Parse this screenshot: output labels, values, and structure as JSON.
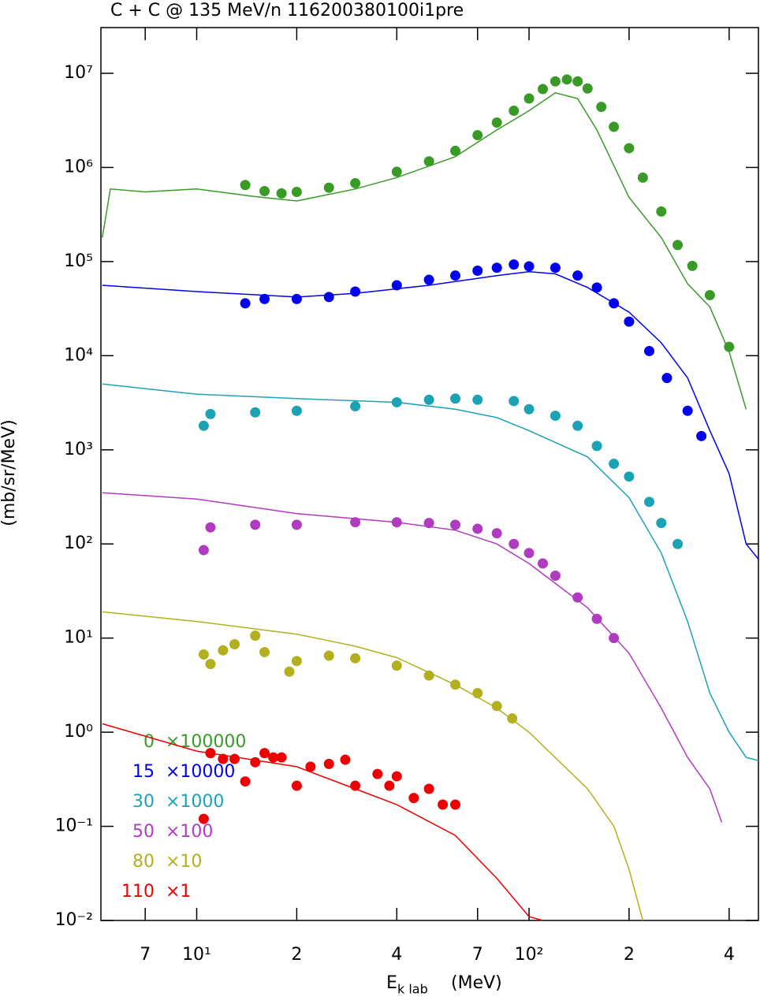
{
  "chart_data": {
    "type": "line-scatter",
    "title": "C + C @ 135 MeV/n 116200380100i1pre",
    "y_label": "(mb/sr/MeV)",
    "x_label": {
      "main": "E",
      "sub": "k lab",
      "unit": "(MeV)"
    },
    "log_x": true,
    "log_y": true,
    "xlim": [
      5.15,
      490
    ],
    "ylim": [
      0.01,
      30600000
    ],
    "xticks": [
      {
        "value": 7,
        "label": "7"
      },
      {
        "value": 10,
        "label": "10¹"
      },
      {
        "value": 20,
        "label": "2"
      },
      {
        "value": 40,
        "label": "4"
      },
      {
        "value": 70,
        "label": "7"
      },
      {
        "value": 100,
        "label": "10²"
      },
      {
        "value": 200,
        "label": "2"
      },
      {
        "value": 400,
        "label": "4"
      }
    ],
    "yticks": [
      {
        "value": 0.01,
        "label": "10⁻²"
      },
      {
        "value": 0.1,
        "label": "10⁻¹"
      },
      {
        "value": 1,
        "label": "10⁰"
      },
      {
        "value": 10,
        "label": "10¹"
      },
      {
        "value": 100,
        "label": "10²"
      },
      {
        "value": 1000,
        "label": "10³"
      },
      {
        "value": 10000,
        "label": "10⁴"
      },
      {
        "value": 100000,
        "label": "10⁵"
      },
      {
        "value": 1000000,
        "label": "10⁶"
      },
      {
        "value": 10000000,
        "label": "10⁷"
      }
    ],
    "series": [
      {
        "name": "0",
        "scale": "×100000",
        "color": "#3a9a28",
        "model": {
          "x": [
            5.2,
            5.5,
            7,
            10,
            15,
            20,
            30,
            40,
            60,
            80,
            100,
            120,
            140,
            160,
            200,
            250,
            300,
            350,
            400,
            450
          ],
          "values": [
            180000,
            590000,
            550000,
            590000,
            490000,
            440000,
            590000,
            780000,
            1300000,
            2500000,
            4000000,
            6200000,
            5400000,
            2500000,
            480000,
            180000,
            58000,
            33000,
            11000,
            2700
          ]
        },
        "points": {
          "x": [
            14,
            16,
            18,
            20,
            25,
            30,
            40,
            50,
            60,
            70,
            80,
            90,
            100,
            110,
            120,
            130,
            140,
            150,
            165,
            180,
            200,
            220,
            250,
            280,
            310,
            350,
            400
          ],
          "values": [
            650000,
            560000,
            530000,
            550000,
            610000,
            680000,
            900000,
            1160000,
            1500000,
            2200000,
            3000000,
            4000000,
            5400000,
            6800000,
            8200000,
            8600000,
            8200000,
            6900000,
            4400000,
            2700000,
            1600000,
            780000,
            340000,
            150000,
            90000,
            44000,
            12400
          ]
        }
      },
      {
        "name": "15",
        "scale": "×10000",
        "color": "#0000ee",
        "model": {
          "x": [
            5.2,
            10,
            20,
            30,
            50,
            80,
            100,
            120,
            150,
            200,
            250,
            300,
            350,
            400,
            450,
            490
          ],
          "values": [
            56000,
            48000,
            42000,
            46000,
            56000,
            71000,
            78000,
            74000,
            53000,
            29000,
            13700,
            5800,
            1600,
            560,
            100,
            69
          ]
        },
        "points": {
          "x": [
            14,
            16,
            20,
            25,
            30,
            40,
            50,
            60,
            70,
            80,
            90,
            100,
            120,
            140,
            160,
            180,
            200,
            230,
            260,
            300,
            330
          ],
          "values": [
            36000,
            40000,
            40000,
            42000,
            48000,
            56000,
            64000,
            71000,
            80000,
            86000,
            93000,
            89000,
            86000,
            71000,
            53000,
            36000,
            23000,
            11200,
            5800,
            2600,
            1400
          ]
        }
      },
      {
        "name": "30",
        "scale": "×1000",
        "color": "#1ba3b5",
        "model": {
          "x": [
            5.2,
            10,
            20,
            40,
            60,
            80,
            100,
            150,
            200,
            250,
            300,
            350,
            400,
            450,
            490
          ],
          "values": [
            5000,
            3900,
            3500,
            3200,
            2700,
            2200,
            1600,
            840,
            310,
            80,
            15,
            2.6,
            1,
            0.54,
            0.5
          ]
        },
        "points": {
          "x": [
            10.5,
            11,
            15,
            20,
            30,
            40,
            50,
            60,
            70,
            90,
            100,
            120,
            140,
            160,
            180,
            200,
            230,
            250,
            280
          ],
          "values": [
            1800,
            2400,
            2500,
            2600,
            2900,
            3200,
            3400,
            3500,
            3400,
            3300,
            2700,
            2300,
            1800,
            1100,
            710,
            520,
            280,
            167,
            100
          ]
        }
      },
      {
        "name": "50",
        "scale": "×100",
        "color": "#b03bc0",
        "model": {
          "x": [
            5.2,
            10,
            20,
            40,
            60,
            80,
            100,
            150,
            200,
            250,
            300,
            350,
            380
          ],
          "values": [
            350,
            300,
            210,
            170,
            140,
            100,
            62,
            21,
            6.9,
            1.8,
            0.54,
            0.25,
            0.11
          ]
        },
        "points": {
          "x": [
            10.5,
            11,
            15,
            20,
            30,
            40,
            50,
            60,
            70,
            80,
            90,
            100,
            110,
            120,
            140,
            160,
            180
          ],
          "values": [
            86,
            150,
            160,
            160,
            170,
            170,
            167,
            160,
            145,
            130,
            100,
            80,
            62,
            46,
            27,
            16,
            10
          ]
        }
      },
      {
        "name": "80",
        "scale": "×10",
        "color": "#b3b020",
        "model": {
          "x": [
            5.2,
            10,
            20,
            30,
            40,
            60,
            80,
            100,
            150,
            180,
            200,
            220
          ],
          "values": [
            19,
            15,
            11,
            8.2,
            6.2,
            3.2,
            1.8,
            1,
            0.25,
            0.1,
            0.035,
            0.01
          ]
        },
        "points": {
          "x": [
            10.5,
            11,
            12,
            13,
            15,
            16,
            19,
            20,
            25,
            30,
            40,
            50,
            60,
            70,
            80,
            89
          ],
          "values": [
            6.7,
            5.3,
            7.4,
            8.6,
            10.6,
            7.1,
            4.4,
            5.7,
            6.5,
            6.1,
            5.1,
            4,
            3.2,
            2.6,
            1.9,
            1.4
          ]
        }
      },
      {
        "name": "110",
        "scale": "×1",
        "color": "#ee0000",
        "model": {
          "x": [
            5.2,
            10,
            20,
            30,
            40,
            60,
            80,
            100,
            110
          ],
          "values": [
            1.23,
            0.63,
            0.43,
            0.25,
            0.17,
            0.08,
            0.028,
            0.011,
            0.01
          ]
        },
        "points": {
          "x": [
            10.5,
            11,
            12,
            13,
            14,
            15,
            16,
            17,
            18,
            20,
            22,
            25,
            28,
            30,
            35,
            38,
            40,
            45,
            50,
            55,
            60
          ],
          "values": [
            0.12,
            0.6,
            0.52,
            0.52,
            0.3,
            0.48,
            0.6,
            0.54,
            0.54,
            0.27,
            0.43,
            0.46,
            0.51,
            0.27,
            0.36,
            0.27,
            0.34,
            0.2,
            0.25,
            0.17,
            0.17
          ]
        }
      }
    ]
  }
}
